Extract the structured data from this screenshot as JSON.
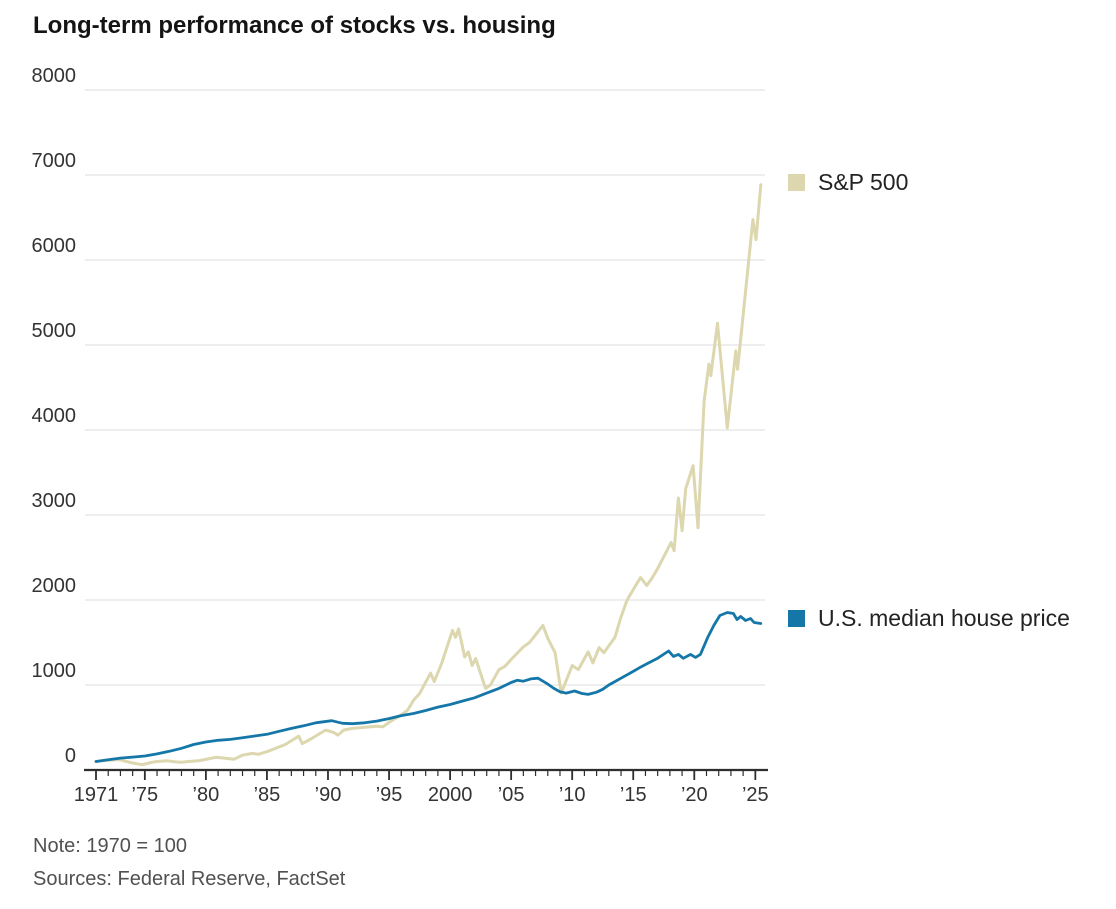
{
  "title": "Long-term performance of stocks vs. housing",
  "note": "Note: 1970 = 100",
  "sources": "Sources: Federal Reserve, FactSet",
  "legend": [
    {
      "label": "S&P 500",
      "color": "#dcd7ae"
    },
    {
      "label": "U.S. median house price",
      "color": "#1577a8"
    }
  ],
  "colors": {
    "gridline": "#e4e4e4",
    "axis": "#2e2e2e",
    "tick_label": "#333333",
    "title_text": "#141414",
    "footer_text": "#515151",
    "background": "#ffffff"
  },
  "chart_data": {
    "type": "line",
    "title": "Long-term performance of stocks vs. housing",
    "note": "1970 = 100",
    "xlabel": "",
    "ylabel": "",
    "grid": "horizontal",
    "legend_position": "right",
    "y_axis": {
      "range": [
        0,
        8000
      ],
      "ticks": [
        0,
        1000,
        2000,
        3000,
        4000,
        5000,
        6000,
        7000,
        8000
      ]
    },
    "x_axis": {
      "range": [
        1971,
        2025.8
      ],
      "minor_tick_every_years": 1,
      "labels": [
        {
          "year": 1971,
          "label": "1971"
        },
        {
          "year": 1975,
          "label": "’75"
        },
        {
          "year": 1980,
          "label": "’80"
        },
        {
          "year": 1985,
          "label": "’85"
        },
        {
          "year": 1990,
          "label": "’90"
        },
        {
          "year": 1995,
          "label": "’95"
        },
        {
          "year": 2000,
          "label": "2000"
        },
        {
          "year": 2005,
          "label": "’05"
        },
        {
          "year": 2010,
          "label": "’10"
        },
        {
          "year": 2015,
          "label": "’15"
        },
        {
          "year": 2020,
          "label": "’20"
        },
        {
          "year": 2025,
          "label": "’25"
        }
      ]
    },
    "series": [
      {
        "name": "S&P 500",
        "color": "#dcd7ae",
        "points": [
          [
            1971,
            100
          ],
          [
            1971.5,
            108
          ],
          [
            1972,
            115
          ],
          [
            1972.9,
            122
          ],
          [
            1973.5,
            100
          ],
          [
            1974,
            82
          ],
          [
            1974.8,
            62
          ],
          [
            1975.5,
            88
          ],
          [
            1976,
            100
          ],
          [
            1976.8,
            108
          ],
          [
            1977.5,
            95
          ],
          [
            1978,
            92
          ],
          [
            1978.6,
            100
          ],
          [
            1979.5,
            110
          ],
          [
            1980.8,
            150
          ],
          [
            1981.5,
            140
          ],
          [
            1982.3,
            126
          ],
          [
            1983,
            175
          ],
          [
            1983.8,
            195
          ],
          [
            1984.3,
            185
          ],
          [
            1985,
            215
          ],
          [
            1985.8,
            260
          ],
          [
            1986.5,
            300
          ],
          [
            1987.6,
            399
          ],
          [
            1987.9,
            310
          ],
          [
            1988.3,
            340
          ],
          [
            1989,
            400
          ],
          [
            1989.8,
            469
          ],
          [
            1990.5,
            440
          ],
          [
            1990.8,
            410
          ],
          [
            1991.3,
            470
          ],
          [
            1992,
            490
          ],
          [
            1993,
            504
          ],
          [
            1994,
            515
          ],
          [
            1994.5,
            508
          ],
          [
            1995,
            560
          ],
          [
            1995.9,
            640
          ],
          [
            1996.5,
            700
          ],
          [
            1997,
            820
          ],
          [
            1997.5,
            900
          ],
          [
            1998.4,
            1140
          ],
          [
            1998.7,
            1040
          ],
          [
            1999.3,
            1250
          ],
          [
            2000.2,
            1642
          ],
          [
            2000.45,
            1560
          ],
          [
            2000.7,
            1660
          ],
          [
            2001.2,
            1330
          ],
          [
            2001.5,
            1390
          ],
          [
            2001.8,
            1230
          ],
          [
            2002.1,
            1310
          ],
          [
            2002.9,
            960
          ],
          [
            2003.3,
            1000
          ],
          [
            2004,
            1180
          ],
          [
            2004.5,
            1220
          ],
          [
            2005,
            1300
          ],
          [
            2006,
            1450
          ],
          [
            2006.5,
            1500
          ],
          [
            2007.6,
            1700
          ],
          [
            2008,
            1550
          ],
          [
            2008.6,
            1380
          ],
          [
            2009.1,
            905
          ],
          [
            2009.5,
            1050
          ],
          [
            2010,
            1230
          ],
          [
            2010.5,
            1180
          ],
          [
            2011.3,
            1390
          ],
          [
            2011.7,
            1260
          ],
          [
            2012.2,
            1440
          ],
          [
            2012.6,
            1380
          ],
          [
            2013.5,
            1560
          ],
          [
            2014,
            1800
          ],
          [
            2014.5,
            2000
          ],
          [
            2015.2,
            2170
          ],
          [
            2015.6,
            2264
          ],
          [
            2016.1,
            2170
          ],
          [
            2016.5,
            2250
          ],
          [
            2017,
            2370
          ],
          [
            2018.1,
            2675
          ],
          [
            2018.35,
            2580
          ],
          [
            2018.7,
            3200
          ],
          [
            2019,
            2815
          ],
          [
            2019.3,
            3310
          ],
          [
            2019.9,
            3580
          ],
          [
            2020.3,
            2850
          ],
          [
            2020.8,
            4340
          ],
          [
            2021.2,
            4775
          ],
          [
            2021.35,
            4640
          ],
          [
            2021.9,
            5255
          ],
          [
            2022.7,
            4025
          ],
          [
            2023.4,
            4930
          ],
          [
            2023.55,
            4715
          ],
          [
            2024.8,
            6475
          ],
          [
            2025.05,
            6240
          ],
          [
            2025.45,
            6885
          ]
        ]
      },
      {
        "name": "U.S. median house price",
        "color": "#1577a8",
        "points": [
          [
            1971,
            100
          ],
          [
            1972,
            120
          ],
          [
            1973,
            140
          ],
          [
            1974,
            152
          ],
          [
            1975,
            165
          ],
          [
            1976,
            190
          ],
          [
            1977,
            220
          ],
          [
            1978,
            255
          ],
          [
            1979,
            300
          ],
          [
            1980,
            330
          ],
          [
            1981,
            350
          ],
          [
            1982,
            360
          ],
          [
            1983,
            380
          ],
          [
            1984,
            400
          ],
          [
            1985,
            420
          ],
          [
            1986,
            455
          ],
          [
            1987,
            490
          ],
          [
            1988,
            520
          ],
          [
            1989,
            555
          ],
          [
            1990.3,
            580
          ],
          [
            1991.2,
            550
          ],
          [
            1992,
            545
          ],
          [
            1993,
            555
          ],
          [
            1994,
            575
          ],
          [
            1995,
            605
          ],
          [
            1996,
            640
          ],
          [
            1997,
            665
          ],
          [
            1998,
            700
          ],
          [
            1999,
            740
          ],
          [
            2000,
            770
          ],
          [
            2001,
            810
          ],
          [
            2002,
            850
          ],
          [
            2003,
            905
          ],
          [
            2004,
            960
          ],
          [
            2005,
            1030
          ],
          [
            2005.5,
            1055
          ],
          [
            2006,
            1045
          ],
          [
            2006.6,
            1072
          ],
          [
            2007.2,
            1080
          ],
          [
            2008,
            1010
          ],
          [
            2008.5,
            960
          ],
          [
            2009,
            920
          ],
          [
            2009.5,
            905
          ],
          [
            2010.2,
            930
          ],
          [
            2010.8,
            900
          ],
          [
            2011.3,
            890
          ],
          [
            2012,
            915
          ],
          [
            2012.5,
            950
          ],
          [
            2013,
            1000
          ],
          [
            2013.5,
            1040
          ],
          [
            2014,
            1080
          ],
          [
            2014.5,
            1120
          ],
          [
            2015,
            1160
          ],
          [
            2015.6,
            1210
          ],
          [
            2016.2,
            1255
          ],
          [
            2017,
            1315
          ],
          [
            2017.9,
            1400
          ],
          [
            2018.3,
            1337
          ],
          [
            2018.7,
            1360
          ],
          [
            2019.1,
            1314
          ],
          [
            2019.7,
            1360
          ],
          [
            2020.1,
            1325
          ],
          [
            2020.5,
            1360
          ],
          [
            2021.1,
            1560
          ],
          [
            2021.6,
            1700
          ],
          [
            2022.1,
            1818
          ],
          [
            2022.7,
            1853
          ],
          [
            2023.2,
            1841
          ],
          [
            2023.5,
            1771
          ],
          [
            2023.8,
            1806
          ],
          [
            2024.2,
            1759
          ],
          [
            2024.6,
            1782
          ],
          [
            2024.9,
            1735
          ],
          [
            2025.45,
            1723
          ]
        ]
      }
    ]
  }
}
